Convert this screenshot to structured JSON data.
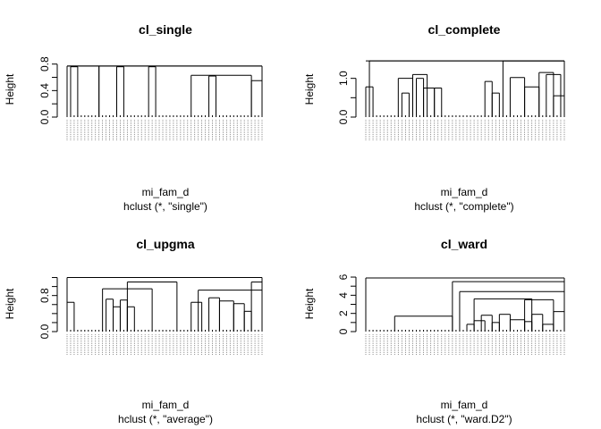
{
  "chart_data": [
    {
      "type": "dendrogram",
      "title": "cl_single",
      "ylabel": "Height",
      "xlabel": "mi_fam_d",
      "sub": "hclust (*, \"single\")",
      "ylim": [
        0,
        0.85
      ],
      "yticks": [
        0.0,
        0.4,
        0.8
      ],
      "ytick_labels": [
        "0.0",
        "0.4",
        "0.8"
      ],
      "minor_yticks": [
        0.2,
        0.6
      ],
      "n_leaves": 56,
      "merges": [
        {
          "left": 0,
          "right": 9,
          "h": 0.77
        },
        {
          "left": 9,
          "right": 56,
          "h": 0.77
        },
        {
          "left": 35,
          "right": 52,
          "h": 0.63
        },
        {
          "left": 52,
          "right": 56,
          "h": 0.55
        },
        {
          "left": 1,
          "right": 3,
          "h": 0.76
        },
        {
          "left": 14,
          "right": 16,
          "h": 0.76
        },
        {
          "left": 23,
          "right": 25,
          "h": 0.76
        },
        {
          "left": 40,
          "right": 42,
          "h": 0.62
        }
      ]
    },
    {
      "type": "dendrogram",
      "title": "cl_complete",
      "ylabel": "Height",
      "xlabel": "mi_fam_d",
      "sub": "hclust (*, \"complete\")",
      "ylim": [
        0,
        1.5
      ],
      "yticks": [
        0.0,
        1.0
      ],
      "ytick_labels": [
        "0.0",
        "1.0"
      ],
      "minor_yticks": [
        0.5
      ],
      "n_leaves": 56,
      "merges": [
        {
          "left": 1,
          "right": 56,
          "h": 1.45
        },
        {
          "left": 0,
          "right": 2,
          "h": 0.78
        },
        {
          "left": 9,
          "right": 13,
          "h": 1.0
        },
        {
          "left": 10,
          "right": 12,
          "h": 0.62
        },
        {
          "left": 13,
          "right": 17,
          "h": 1.1
        },
        {
          "left": 14,
          "right": 16,
          "h": 1.0
        },
        {
          "left": 16,
          "right": 19,
          "h": 0.75
        },
        {
          "left": 19,
          "right": 21,
          "h": 0.75
        },
        {
          "left": 33,
          "right": 35,
          "h": 0.92
        },
        {
          "left": 35,
          "right": 37,
          "h": 0.62
        },
        {
          "left": 38,
          "right": 56,
          "h": 1.45
        },
        {
          "left": 40,
          "right": 44,
          "h": 1.02
        },
        {
          "left": 44,
          "right": 48,
          "h": 0.78
        },
        {
          "left": 48,
          "right": 52,
          "h": 1.15
        },
        {
          "left": 50,
          "right": 54,
          "h": 1.1
        },
        {
          "left": 52,
          "right": 56,
          "h": 0.55
        }
      ]
    },
    {
      "type": "dendrogram",
      "title": "cl_upgma",
      "ylabel": "Height",
      "xlabel": "mi_fam_d",
      "sub": "hclust (*, \"average\")",
      "ylim": [
        0,
        1.25
      ],
      "yticks": [
        0.0,
        0.8
      ],
      "ytick_labels": [
        "0.0",
        "0.8"
      ],
      "minor_yticks": [
        0.2,
        0.4,
        0.6,
        1.0,
        1.2
      ],
      "n_leaves": 56,
      "merges": [
        {
          "left": 0,
          "right": 56,
          "h": 1.2
        },
        {
          "left": 0,
          "right": 2,
          "h": 0.65
        },
        {
          "left": 10,
          "right": 24,
          "h": 0.95
        },
        {
          "left": 17,
          "right": 31,
          "h": 1.1
        },
        {
          "left": 11,
          "right": 13,
          "h": 0.72
        },
        {
          "left": 13,
          "right": 15,
          "h": 0.55
        },
        {
          "left": 15,
          "right": 17,
          "h": 0.7
        },
        {
          "left": 17,
          "right": 19,
          "h": 0.55
        },
        {
          "left": 35,
          "right": 38,
          "h": 0.65
        },
        {
          "left": 37,
          "right": 56,
          "h": 0.92
        },
        {
          "left": 40,
          "right": 43,
          "h": 0.75
        },
        {
          "left": 43,
          "right": 47,
          "h": 0.68
        },
        {
          "left": 47,
          "right": 50,
          "h": 0.62
        },
        {
          "left": 50,
          "right": 52,
          "h": 0.45
        },
        {
          "left": 52,
          "right": 55,
          "h": 1.1
        },
        {
          "left": 55,
          "right": 56,
          "h": 0.65
        }
      ]
    },
    {
      "type": "dendrogram",
      "title": "cl_ward",
      "ylabel": "Height",
      "xlabel": "mi_fam_d",
      "sub": "hclust (*, \"ward.D2\")",
      "ylim": [
        0,
        6.2
      ],
      "yticks": [
        0,
        2,
        4,
        6
      ],
      "ytick_labels": [
        "0",
        "2",
        "4",
        "6"
      ],
      "minor_yticks": [
        1,
        3,
        5
      ],
      "n_leaves": 56,
      "merges": [
        {
          "left": 0,
          "right": 56,
          "h": 5.9
        },
        {
          "left": 8,
          "right": 24,
          "h": 1.7
        },
        {
          "left": 24,
          "right": 56,
          "h": 5.5
        },
        {
          "left": 26,
          "right": 56,
          "h": 4.4
        },
        {
          "left": 30,
          "right": 46,
          "h": 3.6
        },
        {
          "left": 44,
          "right": 52,
          "h": 3.5
        },
        {
          "left": 28,
          "right": 30,
          "h": 0.8
        },
        {
          "left": 30,
          "right": 33,
          "h": 1.2
        },
        {
          "left": 32,
          "right": 35,
          "h": 1.8
        },
        {
          "left": 35,
          "right": 37,
          "h": 1.0
        },
        {
          "left": 37,
          "right": 40,
          "h": 1.9
        },
        {
          "left": 40,
          "right": 44,
          "h": 1.3
        },
        {
          "left": 44,
          "right": 46,
          "h": 1.1
        },
        {
          "left": 46,
          "right": 49,
          "h": 1.9
        },
        {
          "left": 49,
          "right": 52,
          "h": 0.8
        },
        {
          "left": 52,
          "right": 55,
          "h": 2.2
        }
      ]
    }
  ]
}
